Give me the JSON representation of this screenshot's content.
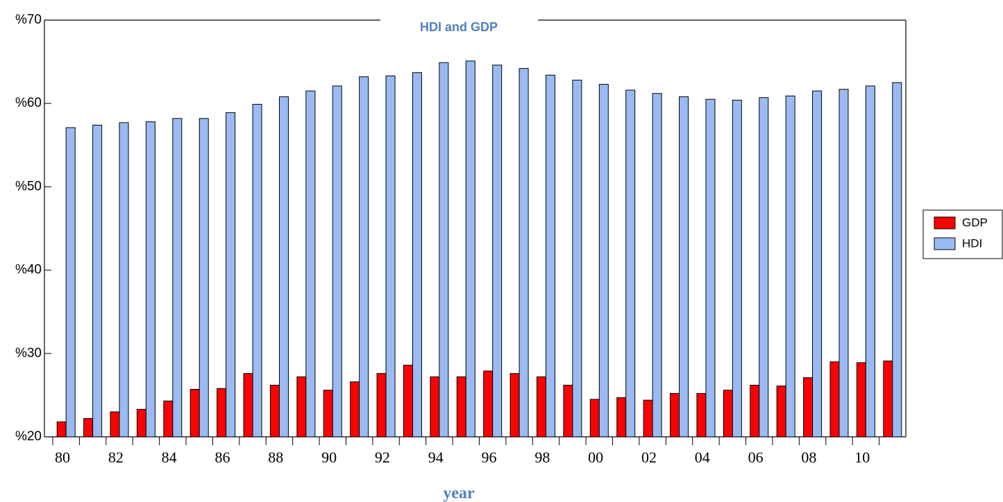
{
  "chart_data": {
    "type": "bar",
    "title": "HDI and GDP",
    "x_label": "year",
    "categories": [
      "80",
      null,
      "82",
      null,
      "84",
      null,
      "86",
      null,
      "88",
      null,
      "90",
      null,
      "92",
      null,
      "94",
      null,
      "96",
      null,
      "98",
      null,
      "00",
      null,
      "02",
      null,
      "04",
      null,
      "06",
      null,
      "08",
      null,
      "10",
      null
    ],
    "series": [
      {
        "name": "GDP",
        "color": "#ff0000",
        "values": [
          21.8,
          22.2,
          23.0,
          23.3,
          24.3,
          25.7,
          25.8,
          27.6,
          26.2,
          27.2,
          25.6,
          26.6,
          27.6,
          28.6,
          27.2,
          27.2,
          27.9,
          27.6,
          27.2,
          26.2,
          24.5,
          24.7,
          24.4,
          25.2,
          25.2,
          25.6,
          26.2,
          26.1,
          27.1,
          29.0,
          28.9,
          29.1
        ]
      },
      {
        "name": "HDI",
        "color": "#99bbf2",
        "values": [
          57.1,
          57.4,
          57.7,
          57.8,
          58.2,
          58.2,
          58.9,
          59.9,
          60.8,
          61.5,
          62.1,
          63.2,
          63.3,
          63.7,
          64.9,
          65.1,
          64.6,
          64.2,
          63.4,
          62.8,
          62.3,
          61.6,
          61.2,
          60.8,
          60.5,
          60.4,
          60.7,
          60.9,
          61.5,
          61.7,
          62.1,
          62.5
        ]
      }
    ],
    "ylim": [
      20,
      70
    ],
    "yticks": [
      {
        "value": 20,
        "label": "%20"
      },
      {
        "value": 30,
        "label": "%30"
      },
      {
        "value": 40,
        "label": "%40"
      },
      {
        "value": 50,
        "label": "%50"
      },
      {
        "value": 60,
        "label": "%60"
      },
      {
        "value": 70,
        "label": "%70"
      }
    ],
    "legend": "right"
  }
}
